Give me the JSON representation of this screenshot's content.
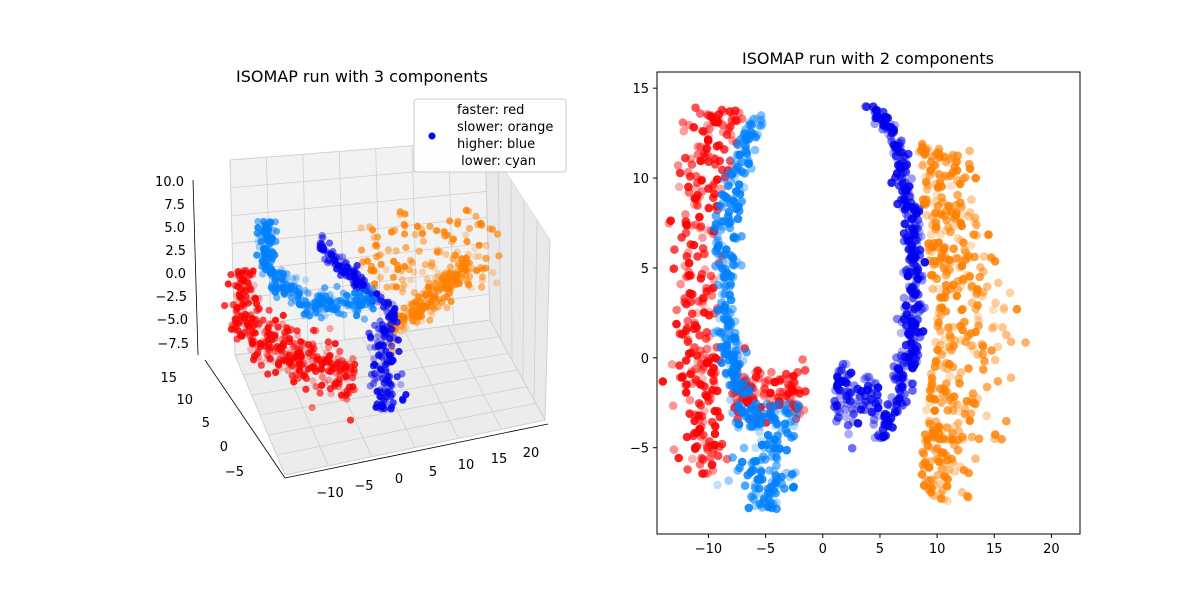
{
  "chart_data": [
    {
      "type": "scatter3d",
      "title": "ISOMAP run with 3 components",
      "x_ticks": [
        "−10",
        "−5",
        "0",
        "5",
        "10",
        "15",
        "20"
      ],
      "y_ticks": [
        "−5",
        "0",
        "5",
        "10",
        "15"
      ],
      "z_ticks": [
        "−7.5",
        "−5.0",
        "−2.5",
        "0.0",
        "2.5",
        "5.0",
        "7.5",
        "10.0"
      ],
      "xlim": [
        -14,
        22
      ],
      "ylim": [
        -7,
        16
      ],
      "zlim": [
        -8.5,
        10.5
      ],
      "legend": {
        "placement": "top-right",
        "lines": [
          "faster: red",
          "slower: orange",
          "higher: blue",
          " lower: cyan"
        ]
      },
      "colors": {
        "faster": "#ff0000",
        "slower": "#ff8000",
        "higher": "#0000ee",
        "lower": "#0080ff"
      }
    },
    {
      "type": "scatter",
      "title": "ISOMAP run with 2 components",
      "x_ticks": [
        -10,
        -5,
        0,
        5,
        10,
        15,
        20
      ],
      "y_ticks": [
        -5,
        0,
        5,
        10,
        15
      ],
      "xlim": [
        -14.5,
        22.5
      ],
      "ylim": [
        -9.8,
        15.9
      ],
      "colors": {
        "faster": "#ff0000",
        "slower": "#ff8000",
        "higher": "#0000ee",
        "lower": "#0080ff"
      },
      "point_count_per_group": 420
    }
  ]
}
